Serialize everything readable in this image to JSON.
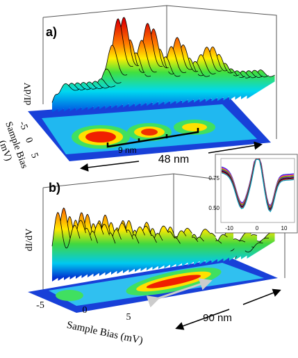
{
  "panel_a": {
    "label": "a)",
    "y_label": "dI/dV",
    "bias_ticks": [
      "-5",
      "0",
      "5"
    ],
    "bias_label_line1": "Sample Bias",
    "bias_label_line2": "(mV)",
    "spacing": "9 nm",
    "length": "48 nm"
  },
  "panel_b": {
    "label": "b)",
    "y_label": "dI/dV",
    "bias_ticks": [
      "-5",
      "0",
      "5"
    ],
    "bias_label": "Sample Bias (mV)",
    "length": "90 nm"
  },
  "inset": {
    "yticks": [
      "0.75",
      "0.50"
    ],
    "xticks": [
      "-10",
      "0",
      "10"
    ]
  }
}
